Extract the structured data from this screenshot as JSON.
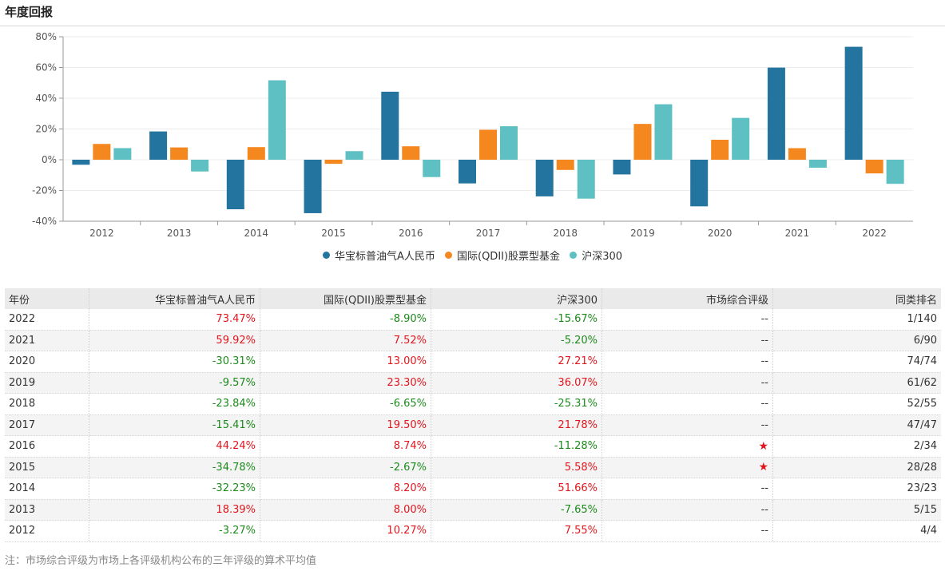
{
  "page": {
    "title": "年度回报",
    "note": "注：市场综合评级为市场上各评级机构公布的三年评级的算术平均值"
  },
  "colors": {
    "fund": "#2474a0",
    "category": "#f5871f",
    "index": "#5ec0c2",
    "positive": "#e0161e",
    "negative": "#1d8a1d"
  },
  "chart_data": {
    "type": "bar",
    "categories": [
      "2012",
      "2013",
      "2014",
      "2015",
      "2016",
      "2017",
      "2018",
      "2019",
      "2020",
      "2021",
      "2022"
    ],
    "series": [
      {
        "name": "华宝标普油气A人民币",
        "values": [
          -3.27,
          18.39,
          -32.23,
          -34.78,
          44.24,
          -15.41,
          -23.84,
          -9.57,
          -30.31,
          59.92,
          73.47
        ]
      },
      {
        "name": "国际(QDII)股票型基金",
        "values": [
          10.27,
          8.0,
          8.2,
          -2.67,
          8.74,
          19.5,
          -6.65,
          23.3,
          13.0,
          7.52,
          -8.9
        ]
      },
      {
        "name": "沪深300",
        "values": [
          7.55,
          -7.65,
          51.66,
          5.58,
          -11.28,
          21.78,
          -25.31,
          36.07,
          27.21,
          -5.2,
          -15.67
        ]
      }
    ],
    "ylim": [
      -40,
      80
    ],
    "yticks": [
      -40,
      -20,
      0,
      20,
      40,
      60,
      80
    ],
    "ytick_labels": [
      "-40%",
      "-20%",
      "0%",
      "20%",
      "40%",
      "60%",
      "80%"
    ],
    "grid": true,
    "legend": "bottom-center"
  },
  "table": {
    "headers": [
      "年份",
      "华宝标普油气A人民币",
      "国际(QDII)股票型基金",
      "沪深300",
      "市场综合评级",
      "同类排名"
    ],
    "rows": [
      {
        "year": "2022",
        "fund": "73.47%",
        "category": "-8.90%",
        "index": "-15.67%",
        "rating": "--",
        "rank": "1/140"
      },
      {
        "year": "2021",
        "fund": "59.92%",
        "category": "7.52%",
        "index": "-5.20%",
        "rating": "--",
        "rank": "6/90"
      },
      {
        "year": "2020",
        "fund": "-30.31%",
        "category": "13.00%",
        "index": "27.21%",
        "rating": "--",
        "rank": "74/74"
      },
      {
        "year": "2019",
        "fund": "-9.57%",
        "category": "23.30%",
        "index": "36.07%",
        "rating": "--",
        "rank": "61/62"
      },
      {
        "year": "2018",
        "fund": "-23.84%",
        "category": "-6.65%",
        "index": "-25.31%",
        "rating": "--",
        "rank": "52/55"
      },
      {
        "year": "2017",
        "fund": "-15.41%",
        "category": "19.50%",
        "index": "21.78%",
        "rating": "--",
        "rank": "47/47"
      },
      {
        "year": "2016",
        "fund": "44.24%",
        "category": "8.74%",
        "index": "-11.28%",
        "rating": "★",
        "rank": "2/34"
      },
      {
        "year": "2015",
        "fund": "-34.78%",
        "category": "-2.67%",
        "index": "5.58%",
        "rating": "★",
        "rank": "28/28"
      },
      {
        "year": "2014",
        "fund": "-32.23%",
        "category": "8.20%",
        "index": "51.66%",
        "rating": "--",
        "rank": "23/23"
      },
      {
        "year": "2013",
        "fund": "18.39%",
        "category": "8.00%",
        "index": "-7.65%",
        "rating": "--",
        "rank": "5/15"
      },
      {
        "year": "2012",
        "fund": "-3.27%",
        "category": "10.27%",
        "index": "7.55%",
        "rating": "--",
        "rank": "4/4"
      }
    ]
  }
}
